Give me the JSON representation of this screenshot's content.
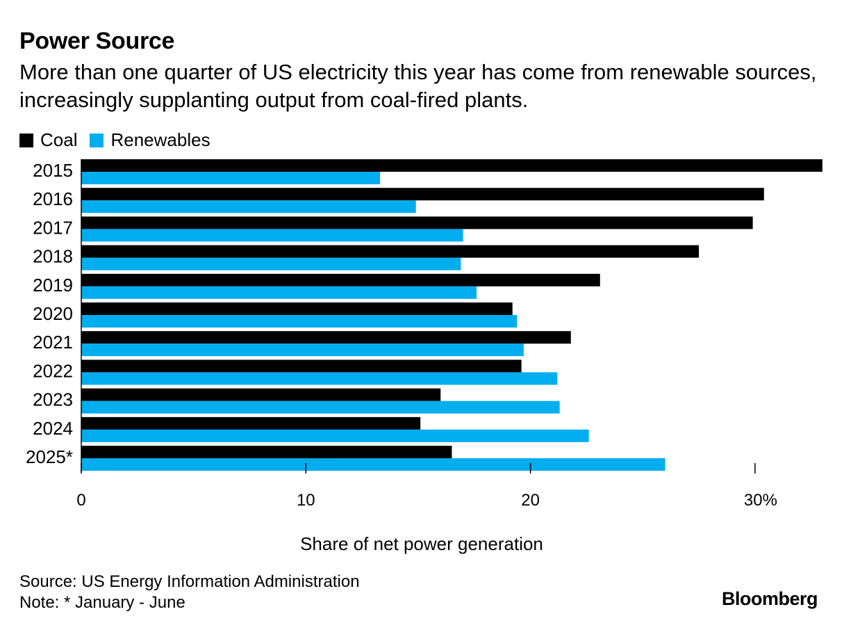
{
  "colors": {
    "coal": "#000000",
    "renewables": "#00adef",
    "axis": "#000000"
  },
  "chart_data": {
    "type": "bar",
    "orientation": "horizontal",
    "title": "Power Source",
    "subtitle": "More than one quarter of US electricity this year has come from renewable sources, increasingly supplanting output from coal-fired plants.",
    "categories": [
      "2015",
      "2016",
      "2017",
      "2018",
      "2019",
      "2020",
      "2021",
      "2022",
      "2023",
      "2024",
      "2025*"
    ],
    "series": [
      {
        "name": "Coal",
        "color": "#000000",
        "values": [
          33.0,
          30.4,
          29.9,
          27.5,
          23.1,
          19.2,
          21.8,
          19.6,
          16.0,
          15.1,
          16.5
        ]
      },
      {
        "name": "Renewables",
        "color": "#00adef",
        "values": [
          13.3,
          14.9,
          17.0,
          16.9,
          17.6,
          19.4,
          19.7,
          21.2,
          21.3,
          22.6,
          26.0
        ]
      }
    ],
    "xlabel": "Share of net power generation",
    "xlim": [
      0,
      33
    ],
    "xticks": [
      0,
      10,
      20,
      30
    ],
    "xtick_labels": [
      "0",
      "10",
      "20",
      "30%"
    ],
    "legend": "top-left",
    "grid": false
  },
  "footer": {
    "source": "Source: US Energy Information Administration",
    "note": "Note: * January - June"
  },
  "brand": "Bloomberg"
}
